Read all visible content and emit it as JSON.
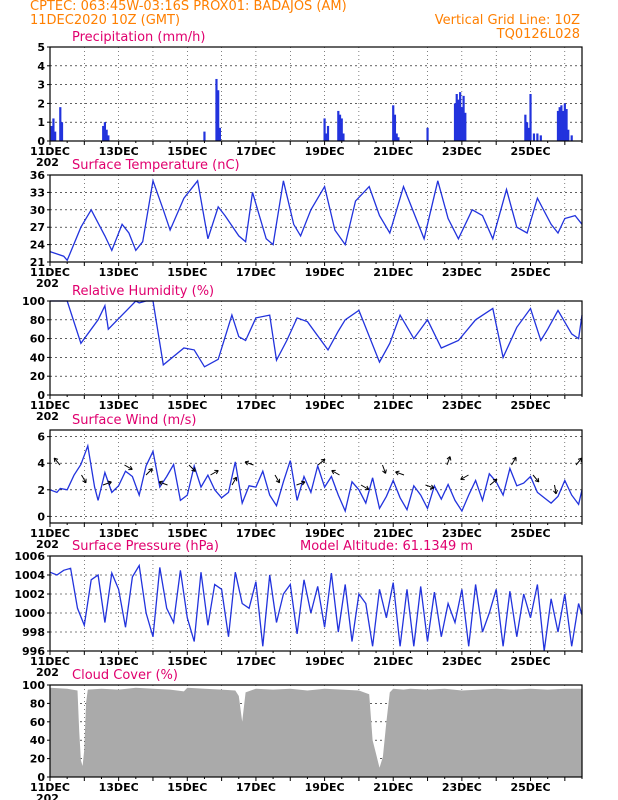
{
  "header": {
    "line1": "CPTEC:   063:45W-03:16S   PROX01: BADAJOS (AM)",
    "line2_left": "11DEC2020 10Z (GMT)",
    "line2_right": "Vertical Grid Line: 10Z",
    "line3_right": "TQ0126L028"
  },
  "colors": {
    "header": "#ff7f00",
    "panel_title": "#e0006e",
    "series": "#2233dd",
    "cloud": "#aaaaaa"
  },
  "x_axis": {
    "tick_labels": [
      "11DEC",
      "13DEC",
      "15DEC",
      "17DEC",
      "19DEC",
      "21DEC",
      "23DEC",
      "25DEC"
    ],
    "tick_positions": [
      0,
      2,
      4,
      6,
      8,
      10,
      12,
      14
    ],
    "range": [
      0,
      15.5
    ],
    "cropped_year_label": "202"
  },
  "chart_data": [
    {
      "type": "bar",
      "title": "Precipitation (mm/h)",
      "ylim": [
        0,
        5
      ],
      "yticks": [
        "0",
        "1",
        "2",
        "3",
        "4",
        "5"
      ],
      "x": [
        0.05,
        0.1,
        0.15,
        0.3,
        0.35,
        1.55,
        1.6,
        1.65,
        1.7,
        4.5,
        4.85,
        4.9,
        4.95,
        8.0,
        8.05,
        8.1,
        8.4,
        8.45,
        8.5,
        8.55,
        10.0,
        10.05,
        10.1,
        10.15,
        11.0,
        11.8,
        11.85,
        11.9,
        11.95,
        12.0,
        12.05,
        12.1,
        13.85,
        13.9,
        13.95,
        14.0,
        14.1,
        14.2,
        14.3,
        14.8,
        14.85,
        14.9,
        14.95,
        15.0,
        15.05,
        15.1,
        15.2
      ],
      "values": [
        0.8,
        1.2,
        0.5,
        1.8,
        1.0,
        0.8,
        1.0,
        0.6,
        0.3,
        0.5,
        3.3,
        2.7,
        0.7,
        1.2,
        0.4,
        0.8,
        1.6,
        1.4,
        1.2,
        0.4,
        1.9,
        1.4,
        0.4,
        0.2,
        0.7,
        2.0,
        2.5,
        2.2,
        2.6,
        1.8,
        2.4,
        1.5,
        1.4,
        1.0,
        0.7,
        2.5,
        0.4,
        0.4,
        0.3,
        1.6,
        1.8,
        1.9,
        1.6,
        2.0,
        1.7,
        0.6,
        0.3
      ]
    },
    {
      "type": "line",
      "title": "Surface Temperature (nC)",
      "ylim": [
        21,
        36
      ],
      "yticks": [
        "21",
        "24",
        "27",
        "30",
        "33",
        "36"
      ],
      "x": [
        0,
        0.4,
        0.5,
        0.9,
        1.2,
        1.6,
        1.8,
        2.1,
        2.3,
        2.5,
        2.7,
        3.0,
        3.3,
        3.5,
        3.9,
        4.3,
        4.6,
        4.9,
        5.1,
        5.5,
        5.7,
        5.9,
        6.3,
        6.5,
        6.8,
        7.1,
        7.3,
        7.6,
        8.0,
        8.3,
        8.6,
        8.9,
        9.3,
        9.6,
        9.9,
        10.3,
        10.6,
        10.9,
        11.3,
        11.6,
        11.9,
        12.3,
        12.6,
        12.9,
        13.3,
        13.6,
        13.9,
        14.2,
        14.6,
        14.8,
        15.0,
        15.3,
        15.5
      ],
      "values": [
        22.8,
        22.0,
        21.3,
        27.0,
        30.0,
        25.5,
        23.0,
        27.5,
        26.0,
        23.0,
        24.5,
        35.0,
        30.0,
        26.5,
        32.0,
        35.0,
        25.0,
        30.5,
        29.0,
        25.5,
        24.5,
        33.0,
        25.0,
        24.0,
        35.0,
        27.5,
        25.5,
        30.0,
        34.0,
        26.5,
        24.0,
        31.5,
        34.0,
        29.0,
        26.0,
        34.0,
        29.5,
        25.0,
        35.0,
        28.5,
        25.0,
        30.0,
        29.0,
        25.0,
        33.5,
        27.0,
        26.0,
        32.0,
        27.5,
        26.0,
        28.5,
        29.0,
        27.5
      ]
    },
    {
      "type": "line",
      "title": "Relative Humidity (%)",
      "ylim": [
        0,
        100
      ],
      "yticks": [
        "0",
        "20",
        "40",
        "60",
        "80",
        "100"
      ],
      "x": [
        0,
        0.5,
        0.9,
        1.4,
        1.6,
        1.7,
        2.1,
        2.5,
        2.6,
        2.8,
        3.0,
        3.3,
        3.9,
        4.2,
        4.5,
        4.9,
        5.3,
        5.5,
        5.7,
        6.0,
        6.4,
        6.6,
        6.9,
        7.2,
        7.5,
        8.1,
        8.4,
        8.6,
        9.0,
        9.6,
        9.9,
        10.2,
        10.6,
        11.0,
        11.4,
        11.9,
        12.4,
        12.9,
        13.2,
        13.6,
        14.0,
        14.3,
        14.5,
        14.8,
        15.2,
        15.4,
        15.5
      ],
      "values": [
        100,
        100,
        55,
        80,
        95,
        70,
        85,
        100,
        98,
        100,
        100,
        32,
        50,
        48,
        30,
        38,
        85,
        62,
        58,
        82,
        85,
        37,
        58,
        82,
        78,
        48,
        68,
        80,
        90,
        35,
        55,
        85,
        60,
        80,
        50,
        58,
        80,
        92,
        40,
        72,
        92,
        58,
        70,
        90,
        65,
        60,
        85
      ]
    },
    {
      "type": "line",
      "title": "Surface Wind (m/s)",
      "ylim": [
        -0.5,
        6.5
      ],
      "yticks": [
        "0",
        "2",
        "4",
        "6"
      ],
      "x": [
        0,
        0.2,
        0.3,
        0.5,
        0.7,
        0.9,
        1.1,
        1.3,
        1.4,
        1.6,
        1.8,
        2.0,
        2.2,
        2.4,
        2.6,
        2.8,
        3.0,
        3.2,
        3.4,
        3.6,
        3.8,
        4.0,
        4.2,
        4.4,
        4.6,
        4.8,
        5.0,
        5.2,
        5.4,
        5.6,
        5.8,
        6.0,
        6.2,
        6.4,
        6.6,
        6.8,
        7.0,
        7.2,
        7.4,
        7.6,
        7.8,
        8.0,
        8.2,
        8.4,
        8.6,
        8.8,
        9.0,
        9.2,
        9.4,
        9.6,
        9.8,
        10.0,
        10.2,
        10.4,
        10.6,
        10.8,
        11.0,
        11.2,
        11.4,
        11.6,
        11.8,
        12.0,
        12.2,
        12.4,
        12.6,
        12.8,
        13.0,
        13.2,
        13.4,
        13.6,
        13.8,
        14.0,
        14.2,
        14.4,
        14.6,
        14.8,
        15.0,
        15.2,
        15.4,
        15.5
      ],
      "values": [
        2.0,
        1.8,
        2.1,
        2.0,
        3.1,
        3.9,
        5.3,
        2.2,
        1.2,
        3.3,
        1.8,
        2.3,
        3.4,
        3.0,
        1.6,
        3.8,
        4.9,
        2.2,
        3.0,
        3.9,
        1.2,
        1.6,
        3.8,
        2.2,
        3.1,
        2.0,
        1.4,
        1.8,
        4.1,
        1.0,
        2.3,
        2.2,
        3.4,
        1.6,
        0.8,
        2.6,
        4.2,
        1.2,
        3.0,
        1.8,
        3.8,
        2.2,
        3.0,
        1.6,
        0.4,
        2.6,
        2.0,
        1.0,
        2.9,
        0.6,
        1.5,
        2.7,
        1.4,
        0.5,
        2.3,
        1.6,
        0.6,
        2.3,
        1.3,
        2.4,
        1.2,
        0.4,
        1.6,
        2.7,
        1.2,
        3.2,
        2.6,
        1.6,
        3.6,
        2.3,
        2.5,
        3.0,
        1.8,
        1.4,
        1.0,
        1.5,
        2.7,
        1.6,
        0.9,
        2.0
      ]
    },
    {
      "type": "line",
      "title": "Surface Pressure (hPa)",
      "annotation": "Model Altitude: 61.1349 m",
      "ylim": [
        996,
        1006
      ],
      "yticks": [
        "996",
        "998",
        "1000",
        "1002",
        "1004",
        "1006"
      ],
      "x": [
        0,
        0.2,
        0.4,
        0.6,
        0.8,
        1.0,
        1.2,
        1.4,
        1.6,
        1.8,
        2.0,
        2.2,
        2.4,
        2.6,
        2.8,
        3.0,
        3.2,
        3.4,
        3.6,
        3.8,
        4.0,
        4.2,
        4.4,
        4.6,
        4.8,
        5.0,
        5.2,
        5.4,
        5.6,
        5.8,
        6.0,
        6.2,
        6.4,
        6.6,
        6.8,
        7.0,
        7.2,
        7.4,
        7.6,
        7.8,
        8.0,
        8.2,
        8.4,
        8.6,
        8.8,
        9.0,
        9.2,
        9.4,
        9.6,
        9.8,
        10.0,
        10.2,
        10.4,
        10.6,
        10.8,
        11.0,
        11.2,
        11.4,
        11.6,
        11.8,
        12.0,
        12.2,
        12.4,
        12.6,
        12.8,
        13.0,
        13.2,
        13.4,
        13.6,
        13.8,
        14.0,
        14.2,
        14.4,
        14.6,
        14.8,
        15.0,
        15.2,
        15.4,
        15.5
      ],
      "values": [
        1004.3,
        1004.0,
        1004.5,
        1004.7,
        1000.5,
        998.7,
        1003.5,
        1004.0,
        999.0,
        1004.2,
        1002.5,
        998.5,
        1003.8,
        1005.0,
        1000.0,
        997.5,
        1004.8,
        1000.5,
        999.0,
        1004.5,
        999.5,
        997.0,
        1004.3,
        998.7,
        1003.0,
        1002.5,
        997.5,
        1004.3,
        1001.0,
        1000.5,
        1003.3,
        996.5,
        1004.0,
        999.0,
        1002.0,
        1003.0,
        997.8,
        1003.5,
        1000.0,
        1002.8,
        998.5,
        1004.2,
        998.0,
        1003.0,
        997.0,
        1002.0,
        1001.0,
        996.5,
        1002.5,
        999.5,
        1003.2,
        996.5,
        1002.5,
        996.5,
        1002.8,
        997.0,
        1002.2,
        997.5,
        1001.0,
        999.0,
        1002.5,
        996.5,
        1003.0,
        998.0,
        1000.0,
        1002.5,
        996.5,
        1002.3,
        997.5,
        1002.0,
        999.5,
        1003.0,
        996.0,
        1001.5,
        998.0,
        1002.0,
        996.5,
        1001.0,
        999.8
      ]
    },
    {
      "type": "area",
      "title": "Cloud Cover (%)",
      "ylim": [
        0,
        100
      ],
      "yticks": [
        "0",
        "20",
        "40",
        "60",
        "80",
        "100"
      ],
      "x": [
        0,
        0.5,
        0.8,
        0.85,
        0.9,
        0.95,
        1.0,
        1.05,
        1.1,
        1.5,
        2.0,
        2.5,
        3.0,
        3.5,
        3.9,
        4.0,
        4.5,
        5.0,
        5.4,
        5.5,
        5.6,
        5.7,
        6.0,
        6.5,
        7.0,
        7.5,
        8.0,
        8.5,
        9.0,
        9.3,
        9.4,
        9.5,
        9.6,
        9.7,
        9.8,
        9.9,
        10.0,
        10.3,
        10.5,
        11.0,
        11.5,
        12.0,
        12.5,
        13.0,
        13.5,
        14.0,
        14.5,
        15.0,
        15.5
      ],
      "values": [
        97,
        96,
        94,
        50,
        18,
        12,
        30,
        80,
        95,
        96,
        95,
        97,
        96,
        95,
        93,
        97,
        96,
        95,
        94,
        88,
        60,
        92,
        96,
        95,
        96,
        94,
        96,
        95,
        94,
        90,
        40,
        25,
        10,
        22,
        60,
        92,
        96,
        95,
        96,
        95,
        96,
        94,
        95,
        96,
        95,
        96,
        95,
        96,
        96
      ]
    }
  ]
}
